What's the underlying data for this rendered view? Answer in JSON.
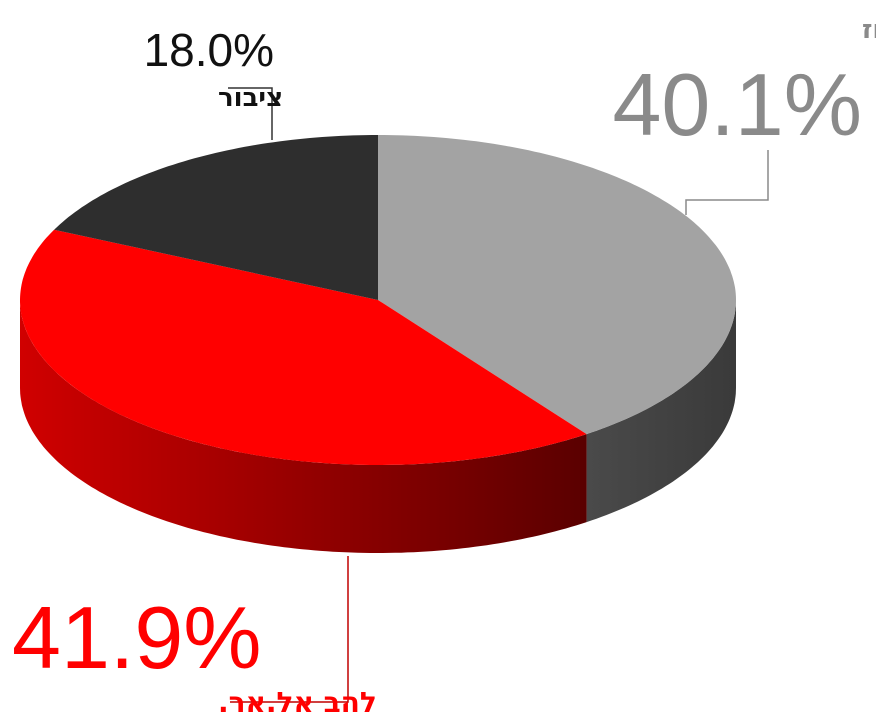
{
  "chart_data": {
    "type": "pie3d",
    "categories": [
      "ירון קיקוז",
      "להב אל.אר.",
      "ציבור"
    ],
    "values": [
      40.1,
      41.9,
      18.0
    ],
    "value_labels": [
      "40.1%",
      "41.9%",
      "18.0%"
    ],
    "colors": [
      "#a3a3a3",
      "#ff0000",
      "#2e2e2e"
    ]
  }
}
